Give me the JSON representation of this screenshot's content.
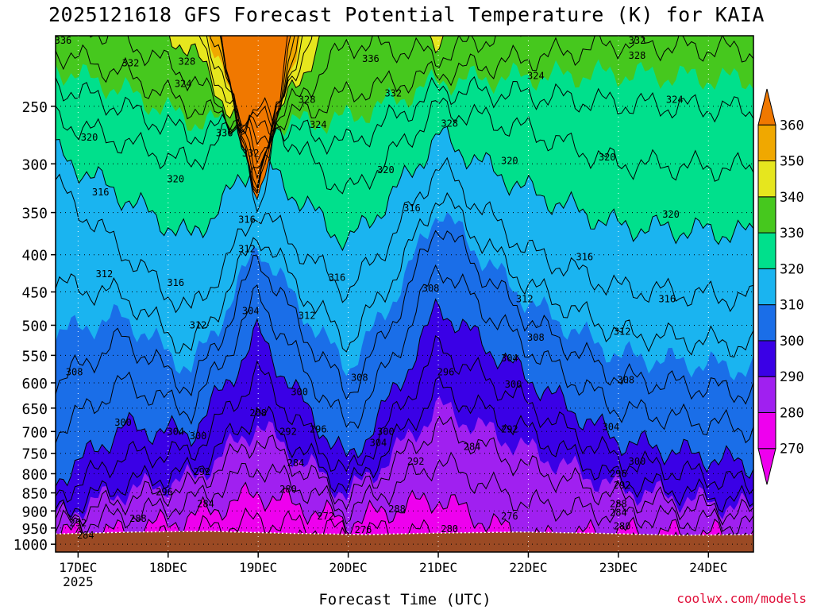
{
  "title": "2025121618 GFS Forecast Potential Temperature (K) for KAIA",
  "x_axis_title": "Forecast Time (UTC)",
  "credit": "coolwx.com/models",
  "year_label": "2025",
  "colors": {
    "ground": "#9b4a24",
    "band_270_280": "#ee00ee",
    "band_280_290": "#a020f0",
    "band_290_300": "#3a00e6",
    "band_300_310": "#1a6ee8",
    "band_310_320": "#1ab4f0",
    "band_320_330": "#00e08c",
    "band_330_340": "#46c81e",
    "band_340_350": "#e6e61e",
    "band_350_360": "#f0a800",
    "band_360_plus": "#f07800"
  },
  "chart_data": {
    "type": "heatmap",
    "title": "2025121618 GFS Forecast Potential Temperature (K) for KAIA",
    "xlabel": "Forecast Time (UTC)",
    "ylabel": "Pressure (hPa)",
    "x_ticks": [
      "17DEC",
      "18DEC",
      "19DEC",
      "20DEC",
      "21DEC",
      "22DEC",
      "23DEC",
      "24DEC"
    ],
    "x_tick_hours": [
      6,
      30,
      54,
      78,
      102,
      126,
      150,
      174
    ],
    "x_range_hours": [
      0,
      186
    ],
    "y_ticks": [
      250,
      300,
      350,
      400,
      450,
      500,
      550,
      600,
      650,
      700,
      750,
      800,
      850,
      900,
      950,
      1000
    ],
    "y_range": [
      200,
      1025
    ],
    "y_scale": "log",
    "colorbar": {
      "ticks": [
        270,
        280,
        290,
        300,
        310,
        320,
        330,
        340,
        350,
        360
      ],
      "range": [
        260,
        370
      ]
    },
    "surface_pressure_hpa": [
      968,
      962,
      960,
      966,
      970,
      965,
      962,
      966,
      972,
      970
    ],
    "isentropes": [
      {
        "theta": 284,
        "times": [
          0,
          18,
          36,
          54,
          78,
          102,
          126,
          150,
          186
        ],
        "pressures": [
          945,
          915,
          875,
          780,
          900,
          770,
          880,
          910,
          940
        ]
      },
      {
        "theta": 292,
        "times": [
          0,
          18,
          36,
          54,
          78,
          102,
          126,
          150,
          186
        ],
        "pressures": [
          905,
          825,
          795,
          655,
          840,
          610,
          700,
          815,
          880
        ]
      },
      {
        "theta": 300,
        "times": [
          0,
          18,
          36,
          54,
          78,
          102,
          126,
          150,
          186
        ],
        "pressures": [
          815,
          690,
          705,
          510,
          770,
          470,
          590,
          720,
          780
        ]
      },
      {
        "theta": 308,
        "times": [
          0,
          18,
          36,
          54,
          78,
          102,
          126,
          150,
          186
        ],
        "pressures": [
          600,
          520,
          610,
          400,
          620,
          360,
          490,
          590,
          620
        ]
      },
      {
        "theta": 316,
        "times": [
          0,
          18,
          36,
          54,
          78,
          102,
          126,
          150,
          186
        ],
        "pressures": [
          320,
          395,
          480,
          345,
          450,
          300,
          395,
          445,
          460
        ]
      },
      {
        "theta": 324,
        "times": [
          0,
          18,
          36,
          54,
          78,
          102,
          126,
          150,
          186
        ],
        "pressures": [
          260,
          280,
          300,
          250,
          330,
          250,
          270,
          300,
          305
        ]
      },
      {
        "theta": 332,
        "times": [
          0,
          18,
          36,
          54,
          78,
          102,
          126,
          150,
          186
        ],
        "pressures": [
          210,
          225,
          250,
          270,
          240,
          225,
          215,
          205,
          210
        ]
      }
    ],
    "contour_labels": [
      {
        "text": "336",
        "t": 2,
        "p": 203
      },
      {
        "text": "332",
        "t": 20,
        "p": 218
      },
      {
        "text": "328",
        "t": 35,
        "p": 217
      },
      {
        "text": "324",
        "t": 34,
        "p": 233
      },
      {
        "text": "320",
        "t": 9,
        "p": 276
      },
      {
        "text": "320",
        "t": 32,
        "p": 315
      },
      {
        "text": "316",
        "t": 12,
        "p": 328
      },
      {
        "text": "312",
        "t": 13,
        "p": 425
      },
      {
        "text": "316",
        "t": 32,
        "p": 437
      },
      {
        "text": "312",
        "t": 38,
        "p": 500
      },
      {
        "text": "308",
        "t": 5,
        "p": 580
      },
      {
        "text": "300",
        "t": 18,
        "p": 680
      },
      {
        "text": "304",
        "t": 32,
        "p": 700
      },
      {
        "text": "300",
        "t": 38,
        "p": 710
      },
      {
        "text": "292",
        "t": 39,
        "p": 795
      },
      {
        "text": "296",
        "t": 29,
        "p": 848
      },
      {
        "text": "284",
        "t": 40,
        "p": 880
      },
      {
        "text": "288",
        "t": 22,
        "p": 922
      },
      {
        "text": "292",
        "t": 6,
        "p": 935
      },
      {
        "text": "284",
        "t": 8,
        "p": 972
      },
      {
        "text": "336",
        "t": 45,
        "p": 272
      },
      {
        "text": "332",
        "t": 52,
        "p": 290
      },
      {
        "text": "316",
        "t": 51,
        "p": 358
      },
      {
        "text": "312",
        "t": 51,
        "p": 393
      },
      {
        "text": "304",
        "t": 52,
        "p": 478
      },
      {
        "text": "288",
        "t": 54,
        "p": 660
      },
      {
        "text": "292",
        "t": 62,
        "p": 700
      },
      {
        "text": "300",
        "t": 65,
        "p": 618
      },
      {
        "text": "296",
        "t": 70,
        "p": 695
      },
      {
        "text": "284",
        "t": 64,
        "p": 773
      },
      {
        "text": "280",
        "t": 62,
        "p": 840
      },
      {
        "text": "272",
        "t": 72,
        "p": 915
      },
      {
        "text": "276",
        "t": 82,
        "p": 955
      },
      {
        "text": "288",
        "t": 91,
        "p": 895
      },
      {
        "text": "328",
        "t": 67,
        "p": 245
      },
      {
        "text": "324",
        "t": 70,
        "p": 265
      },
      {
        "text": "316",
        "t": 75,
        "p": 430
      },
      {
        "text": "312",
        "t": 67,
        "p": 485
      },
      {
        "text": "308",
        "t": 81,
        "p": 590
      },
      {
        "text": "300",
        "t": 88,
        "p": 700
      },
      {
        "text": "304",
        "t": 86,
        "p": 725
      },
      {
        "text": "292",
        "t": 96,
        "p": 770
      },
      {
        "text": "336",
        "t": 84,
        "p": 215
      },
      {
        "text": "332",
        "t": 90,
        "p": 240
      },
      {
        "text": "320",
        "t": 88,
        "p": 306
      },
      {
        "text": "316",
        "t": 95,
        "p": 345
      },
      {
        "text": "328",
        "t": 105,
        "p": 264
      },
      {
        "text": "308",
        "t": 100,
        "p": 445
      },
      {
        "text": "296",
        "t": 104,
        "p": 580
      },
      {
        "text": "284",
        "t": 111,
        "p": 735
      },
      {
        "text": "280",
        "t": 105,
        "p": 953
      },
      {
        "text": "276",
        "t": 121,
        "p": 915
      },
      {
        "text": "324",
        "t": 128,
        "p": 227
      },
      {
        "text": "320",
        "t": 121,
        "p": 297
      },
      {
        "text": "312",
        "t": 125,
        "p": 460
      },
      {
        "text": "308",
        "t": 128,
        "p": 520
      },
      {
        "text": "304",
        "t": 121,
        "p": 555
      },
      {
        "text": "300",
        "t": 122,
        "p": 603
      },
      {
        "text": "292",
        "t": 121,
        "p": 695
      },
      {
        "text": "332",
        "t": 155,
        "p": 203
      },
      {
        "text": "328",
        "t": 155,
        "p": 213
      },
      {
        "text": "324",
        "t": 165,
        "p": 245
      },
      {
        "text": "320",
        "t": 147,
        "p": 294
      },
      {
        "text": "320",
        "t": 164,
        "p": 352
      },
      {
        "text": "316",
        "t": 141,
        "p": 403
      },
      {
        "text": "316",
        "t": 163,
        "p": 460
      },
      {
        "text": "312",
        "t": 151,
        "p": 510
      },
      {
        "text": "308",
        "t": 152,
        "p": 595
      },
      {
        "text": "304",
        "t": 148,
        "p": 690
      },
      {
        "text": "300",
        "t": 155,
        "p": 770
      },
      {
        "text": "296",
        "t": 150,
        "p": 800
      },
      {
        "text": "292",
        "t": 151,
        "p": 830
      },
      {
        "text": "288",
        "t": 150,
        "p": 880
      },
      {
        "text": "284",
        "t": 150,
        "p": 905
      },
      {
        "text": "280",
        "t": 151,
        "p": 945
      }
    ]
  }
}
